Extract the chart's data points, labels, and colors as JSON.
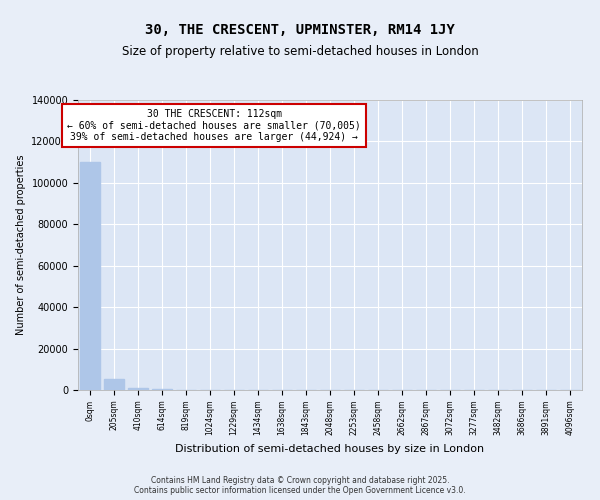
{
  "title1": "30, THE CRESCENT, UPMINSTER, RM14 1JY",
  "title2": "Size of property relative to semi-detached houses in London",
  "xlabel": "Distribution of semi-detached houses by size in London",
  "ylabel": "Number of semi-detached properties",
  "annotation_line1": "30 THE CRESCENT: 112sqm",
  "annotation_line2": "← 60% of semi-detached houses are smaller (70,005)",
  "annotation_line3": "39% of semi-detached houses are larger (44,924) →",
  "bar_color": "#aec6e8",
  "background_color": "#e8eef8",
  "plot_bg_color": "#dce6f5",
  "grid_color": "#ffffff",
  "footer": "Contains HM Land Registry data © Crown copyright and database right 2025.\nContains public sector information licensed under the Open Government Licence v3.0.",
  "bin_labels": [
    "0sqm",
    "205sqm",
    "410sqm",
    "614sqm",
    "819sqm",
    "1024sqm",
    "1229sqm",
    "1434sqm",
    "1638sqm",
    "1843sqm",
    "2048sqm",
    "2253sqm",
    "2458sqm",
    "2662sqm",
    "2867sqm",
    "3072sqm",
    "3277sqm",
    "3482sqm",
    "3686sqm",
    "3891sqm",
    "4096sqm"
  ],
  "bar_heights": [
    110000,
    5200,
    800,
    300,
    150,
    80,
    50,
    30,
    20,
    15,
    10,
    8,
    6,
    5,
    4,
    3,
    3,
    2,
    2,
    1,
    0
  ],
  "ylim": [
    0,
    140000
  ],
  "yticks": [
    0,
    20000,
    40000,
    60000,
    80000,
    100000,
    120000,
    140000
  ]
}
